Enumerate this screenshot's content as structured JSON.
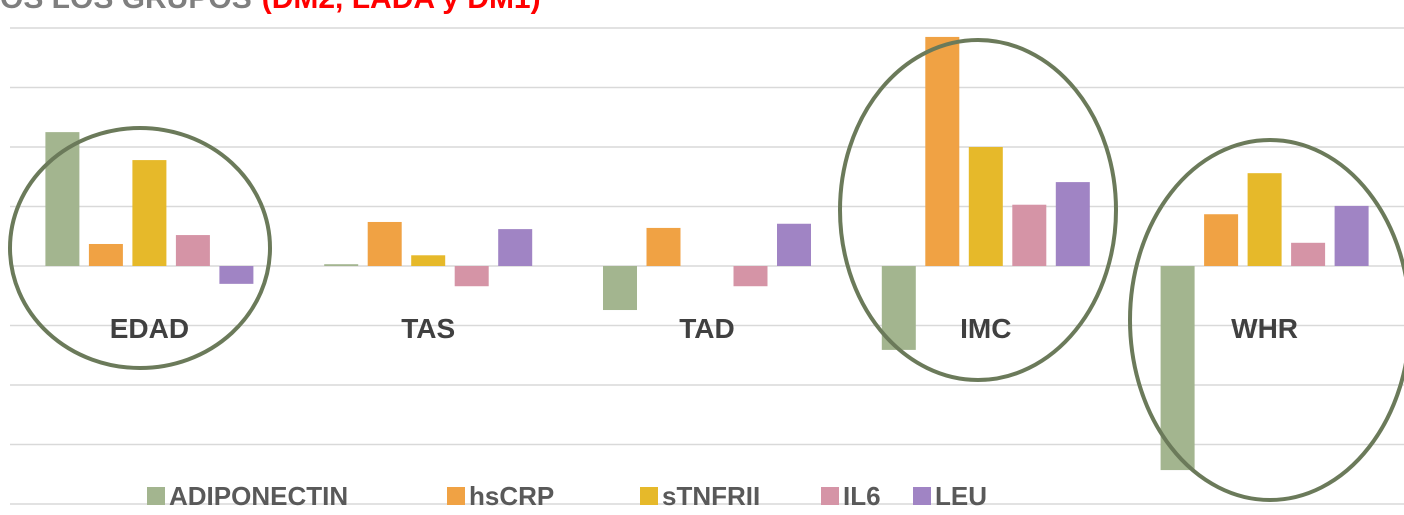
{
  "chart_data": {
    "type": "bar",
    "title": "OS LOS GRUPOS",
    "title_highlight": "(DM2, LADA y DM1)",
    "categories": [
      "EDAD",
      "TAS",
      "TAD",
      "IMC",
      "WHR"
    ],
    "series": [
      {
        "name": "ADIPONECTIN",
        "color": "#a3b58f",
        "values": [
          2.25,
          0.03,
          -0.74,
          -1.41,
          -3.43
        ]
      },
      {
        "name": "hsCRP",
        "color": "#f0a244",
        "values": [
          0.37,
          0.74,
          0.64,
          3.85,
          0.87
        ]
      },
      {
        "name": "sTNFRII",
        "color": "#e6b92a",
        "values": [
          1.78,
          0.18,
          0,
          2.0,
          1.56
        ]
      },
      {
        "name": "IL6",
        "color": "#d594a6",
        "values": [
          0.52,
          -0.34,
          -0.34,
          1.03,
          0.39
        ]
      },
      {
        "name": "LEU",
        "color": "#a084c4",
        "values": [
          -0.3,
          0.62,
          0.71,
          1.41,
          1.01
        ]
      }
    ],
    "ylim": [
      -4,
      4
    ],
    "yticks": [
      -4,
      -3,
      -2,
      -1,
      0,
      1,
      2,
      3,
      4
    ],
    "grid": true,
    "legend": "bottom"
  }
}
